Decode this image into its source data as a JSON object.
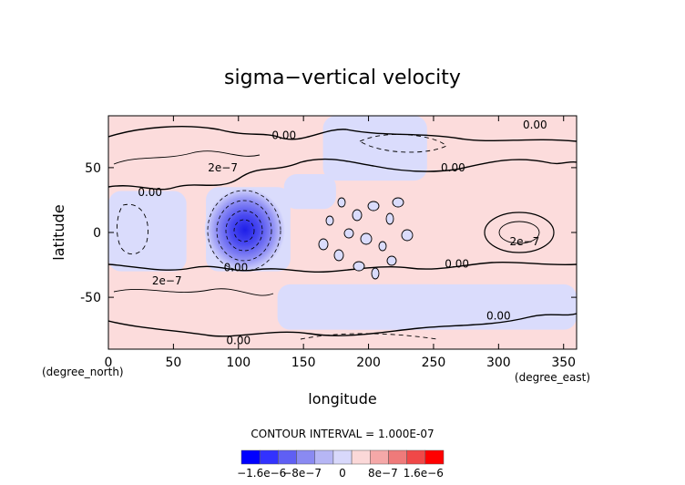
{
  "chart_data": {
    "type": "contour",
    "title": "sigma−vertical velocity",
    "xlabel": "longitude",
    "ylabel": "latitude",
    "x_unit_label": "(degree_east)",
    "y_unit_label": "(degree_north)",
    "xlim": [
      0,
      360
    ],
    "ylim": [
      -90,
      90
    ],
    "x_ticks": [
      0,
      50,
      100,
      150,
      200,
      250,
      300,
      350
    ],
    "y_ticks": [
      -50,
      0,
      50
    ],
    "contour_interval_text": "CONTOUR INTERVAL = 1.000E-07",
    "contour_labels": [
      {
        "text": "0.00",
        "lon": 135,
        "lat": 72
      },
      {
        "text": "0.00",
        "lon": 328,
        "lat": 80
      },
      {
        "text": "2e−7",
        "lon": 88,
        "lat": 47
      },
      {
        "text": "0.00",
        "lon": 265,
        "lat": 47
      },
      {
        "text": "0.00",
        "lon": 32,
        "lat": 28
      },
      {
        "text": "2e−7",
        "lon": 320,
        "lat": -10
      },
      {
        "text": "0.00",
        "lon": 98,
        "lat": -30
      },
      {
        "text": "0.00",
        "lon": 268,
        "lat": -27
      },
      {
        "text": "2e−7",
        "lon": 45,
        "lat": -40
      },
      {
        "text": "0.00",
        "lon": 300,
        "lat": -67
      },
      {
        "text": "0.00",
        "lon": 100,
        "lat": -86
      }
    ],
    "colorbar": {
      "tick_labels": [
        "−1.6e−6",
        "−8e−7",
        "0",
        "8e−7",
        "1.6e−6"
      ],
      "tick_values": [
        -1.6e-06,
        -8e-07,
        0,
        8e-07,
        1.6e-06
      ],
      "levels": [
        -2e-06,
        -1.6e-06,
        -1.2e-06,
        -8e-07,
        -4e-07,
        0,
        4e-07,
        8e-07,
        1.2e-06,
        1.6e-06,
        2e-06
      ],
      "colors": [
        "#0000ff",
        "#3232ff",
        "#5f5ff4",
        "#8a8af2",
        "#b6b6f5",
        "#d8d8fb",
        "#fbd8d8",
        "#f5a8a8",
        "#ef7a7a",
        "#f04848",
        "#ff0000"
      ]
    },
    "field_colors": {
      "positive": "#fcdcdc",
      "negative": "#dadcfc",
      "strong_negative": "#3c3cf0"
    },
    "positive_regions": [
      {
        "lon": [
          0,
          135
        ],
        "lat": [
          35,
          90
        ]
      },
      {
        "lon": [
          135,
          165
        ],
        "lat": [
          45,
          90
        ]
      },
      {
        "lon": [
          245,
          360
        ],
        "lat": [
          40,
          90
        ]
      },
      {
        "lon": [
          0,
          360
        ],
        "lat": [
          -40,
          10
        ]
      },
      {
        "lon": [
          0,
          130
        ],
        "lat": [
          -90,
          -40
        ]
      },
      {
        "lon": [
          170,
          200
        ],
        "lat": [
          -90,
          -70
        ]
      },
      {
        "lon": [
          200,
          360
        ],
        "lat": [
          -90,
          -75
        ]
      },
      {
        "lon": [
          140,
          200
        ],
        "lat": [
          -5,
          18
        ]
      },
      {
        "lon": [
          270,
          360
        ],
        "lat": [
          -35,
          30
        ]
      }
    ],
    "negative_regions": [
      {
        "lon": [
          165,
          245
        ],
        "lat": [
          40,
          90
        ]
      },
      {
        "lon": [
          135,
          175
        ],
        "lat": [
          18,
          45
        ]
      },
      {
        "lon": [
          0,
          60
        ],
        "lat": [
          -30,
          32
        ]
      },
      {
        "lon": [
          75,
          140
        ],
        "lat": [
          -30,
          35
        ]
      },
      {
        "lon": [
          130,
          360
        ],
        "lat": [
          -75,
          -40
        ]
      },
      {
        "lon": [
          175,
          260
        ],
        "lat": [
          -75,
          -40
        ]
      },
      {
        "lon": [
          290,
          360
        ],
        "lat": [
          -70,
          -55
        ]
      }
    ],
    "extremum": {
      "type": "min",
      "lon": 105,
      "lat": 2,
      "value": -1.9e-06
    }
  }
}
